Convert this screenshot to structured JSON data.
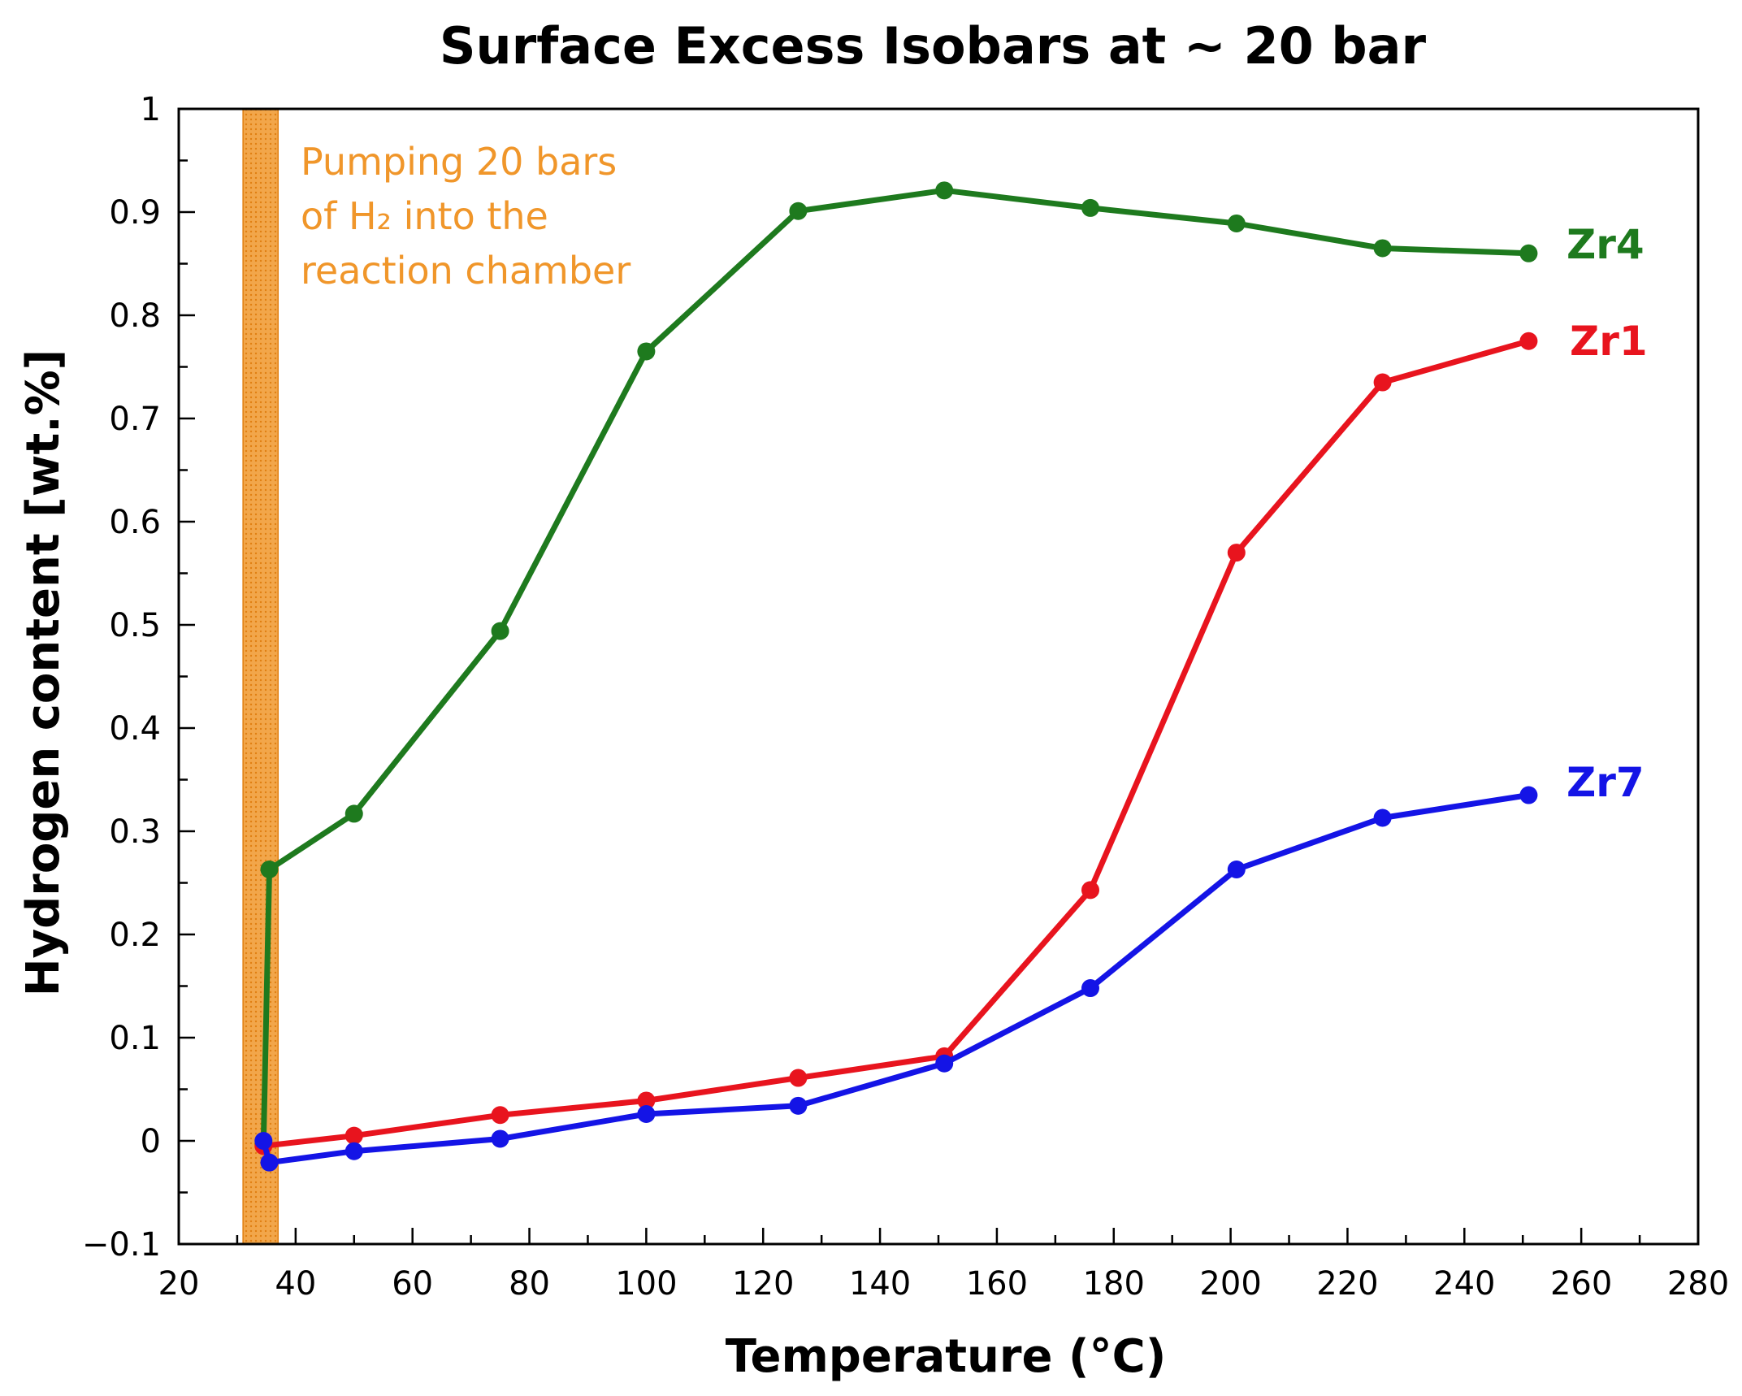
{
  "chart_data": {
    "type": "line",
    "title": "Surface Excess Isobars at ~ 20 bar",
    "xlabel": "Temperature (°C)",
    "ylabel": "Hydrogen content [wt.%]",
    "xlim": [
      20,
      280
    ],
    "ylim": [
      -0.1,
      1
    ],
    "x_ticks": [
      "20",
      "40",
      "60",
      "80",
      "100",
      "120",
      "140",
      "160",
      "180",
      "200",
      "220",
      "240",
      "260",
      "280"
    ],
    "y_ticks": [
      "−0.1",
      "0",
      "0.1",
      "0.2",
      "0.3",
      "0.4",
      "0.5",
      "0.6",
      "0.7",
      "0.8",
      "0.9",
      "1"
    ],
    "shaded_band": {
      "x_range": [
        31,
        37
      ],
      "color": "#f0962a",
      "annotation_lines": [
        "Pumping 20 bars",
        "of H₂ into the",
        "reaction chamber"
      ]
    },
    "series": [
      {
        "name": "Zr4",
        "color": "#1e7a1e",
        "x": [
          34.5,
          35.5,
          50,
          75,
          100,
          126,
          151,
          176,
          201,
          226,
          251
        ],
        "y": [
          -0.003,
          0.263,
          0.317,
          0.494,
          0.765,
          0.901,
          0.921,
          0.904,
          0.889,
          0.865,
          0.86
        ]
      },
      {
        "name": "Zr1",
        "color": "#e8141e",
        "x": [
          34.5,
          50,
          75,
          100,
          126,
          151,
          176,
          201,
          226,
          251
        ],
        "y": [
          -0.005,
          0.005,
          0.025,
          0.039,
          0.061,
          0.082,
          0.243,
          0.57,
          0.735,
          0.775
        ]
      },
      {
        "name": "Zr7",
        "color": "#1414e6",
        "x": [
          34.5,
          35.5,
          50,
          75,
          100,
          126,
          151,
          176,
          201,
          226,
          251
        ],
        "y": [
          0.0,
          -0.021,
          -0.01,
          0.002,
          0.026,
          0.034,
          0.075,
          0.148,
          0.263,
          0.313,
          0.335
        ]
      }
    ]
  }
}
